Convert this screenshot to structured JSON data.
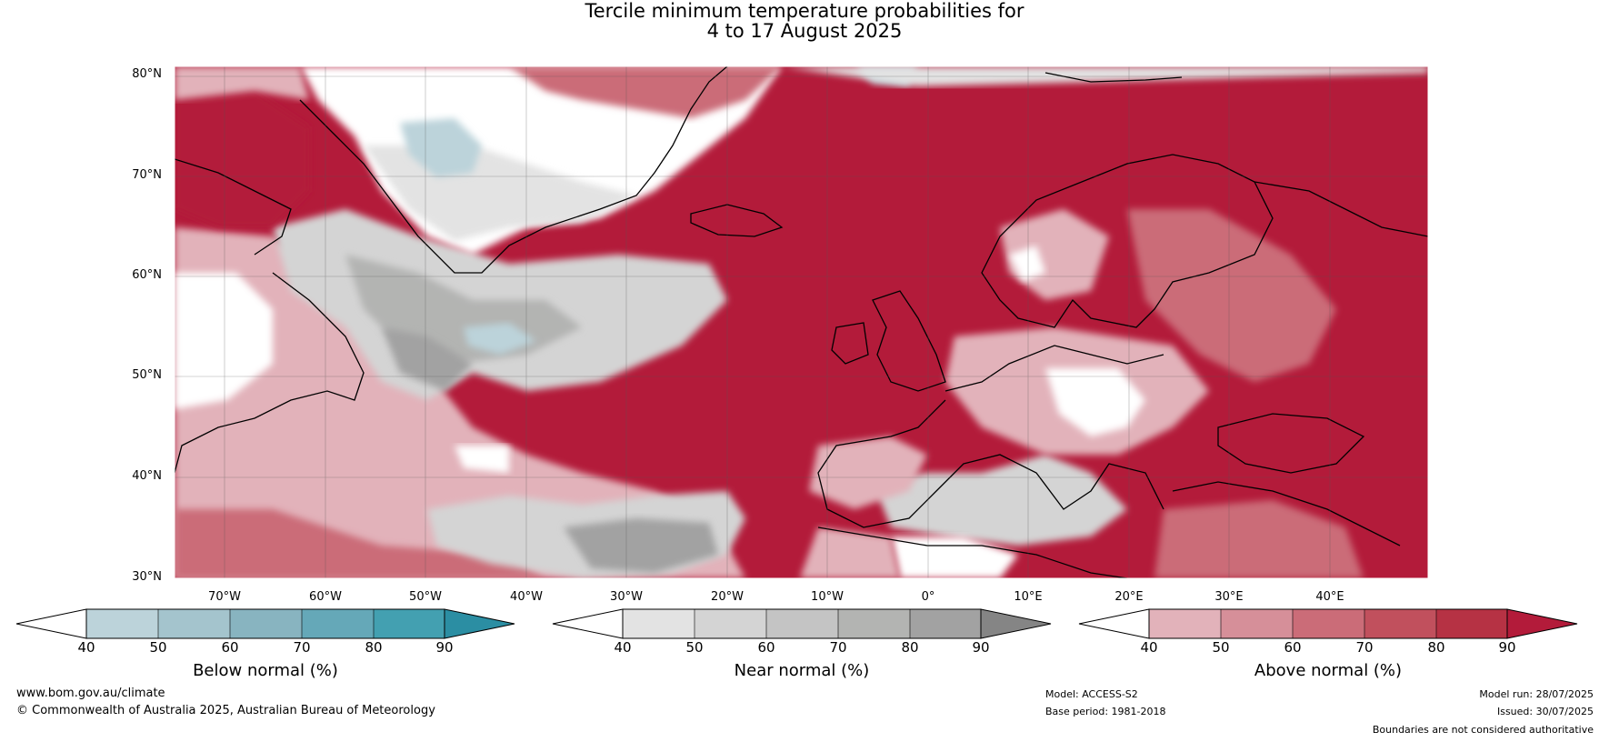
{
  "title": {
    "line1": "Tercile minimum temperature probabilities for",
    "line2": "4 to 17 August 2025"
  },
  "map": {
    "latitude_labels": [
      "80°N",
      "70°N",
      "60°N",
      "50°N",
      "40°N",
      "30°N"
    ],
    "longitude_labels": [
      "70°W",
      "60°W",
      "50°W",
      "40°W",
      "30°W",
      "20°W",
      "10°W",
      "0°",
      "10°E",
      "20°E",
      "30°E",
      "40°E"
    ],
    "colors": {
      "above_dark": "#b31b3a",
      "above_mid": "#c9505f",
      "above_light": "#e2b2ba",
      "near_light": "#e3e3e3",
      "near_mid": "#c2c2c2",
      "near_dark": "#a3a3a3",
      "below_light": "#bcd3da",
      "white": "#ffffff"
    }
  },
  "colorbars": [
    {
      "name": "below",
      "label": "Below normal (%)",
      "ticks": [
        "40",
        "50",
        "60",
        "70",
        "80",
        "90"
      ],
      "colors": [
        "#ffffff",
        "#bcd3da",
        "#a4c4cd",
        "#88b4c0",
        "#65a8b8",
        "#43a0b1",
        "#2b8ea3"
      ]
    },
    {
      "name": "near",
      "label": "Near normal (%)",
      "ticks": [
        "40",
        "50",
        "60",
        "70",
        "80",
        "90"
      ],
      "colors": [
        "#ffffff",
        "#e3e3e3",
        "#d4d4d4",
        "#c4c4c4",
        "#b3b4b2",
        "#a2a2a2",
        "#858585"
      ]
    },
    {
      "name": "above",
      "label": "Above normal (%)",
      "ticks": [
        "40",
        "50",
        "60",
        "70",
        "80",
        "90"
      ],
      "colors": [
        "#ffffff",
        "#e2b2ba",
        "#d68f99",
        "#cb6c78",
        "#c1505d",
        "#b63244",
        "#b31b3a"
      ]
    }
  ],
  "footer": {
    "website": "www.bom.gov.au/climate",
    "copyright": "© Commonwealth of Australia 2025, Australian Bureau of Meteorology",
    "model": "Model: ACCESS-S2",
    "base_period": "Base period: 1981-2018",
    "model_run": "Model run: 28/07/2025",
    "issued": "Issued: 30/07/2025",
    "disclaimer": "Boundaries are not considered authoritative"
  }
}
